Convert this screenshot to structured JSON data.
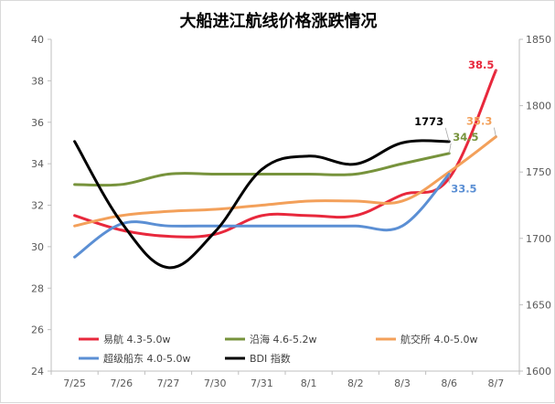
{
  "chart_data": {
    "type": "line",
    "title": "大船进江航线价格涨跌情况",
    "categories": [
      "7/25",
      "7/26",
      "7/27",
      "7/30",
      "7/31",
      "8/1",
      "8/2",
      "8/3",
      "8/6",
      "8/7"
    ],
    "y_left": {
      "min": 24,
      "max": 40,
      "step": 2
    },
    "y_right": {
      "min": 1600,
      "max": 1850,
      "step": 50
    },
    "grid": false,
    "legend_position": "bottom-left",
    "series": [
      {
        "name": "易航 4.3-5.0w",
        "axis": "left",
        "color": "#e8283c",
        "values": [
          31.5,
          30.8,
          30.5,
          30.6,
          31.5,
          31.5,
          31.5,
          32.5,
          33.3,
          38.5
        ],
        "data_label": {
          "index": 9,
          "text": "38.5"
        }
      },
      {
        "name": "沿海 4.6-5.2w",
        "axis": "left",
        "color": "#77933c",
        "values": [
          33.0,
          33.0,
          33.5,
          33.5,
          33.5,
          33.5,
          33.5,
          34.0,
          34.5,
          null
        ],
        "data_label": {
          "index": 8,
          "text": "34.5"
        }
      },
      {
        "name": "航交所 4.0-5.0w",
        "axis": "left",
        "color": "#f3a05a",
        "values": [
          31.0,
          31.5,
          31.7,
          31.8,
          32.0,
          32.2,
          32.2,
          32.2,
          33.6,
          35.3
        ],
        "data_label": {
          "index": 9,
          "text": "35.3"
        }
      },
      {
        "name": "超级船东 4.0-5.0w",
        "axis": "left",
        "color": "#5b8fd4",
        "values": [
          29.5,
          31.1,
          31.0,
          31.0,
          31.0,
          31.0,
          31.0,
          31.0,
          33.5,
          null
        ],
        "data_label": {
          "index": 8,
          "text": "33.5"
        }
      },
      {
        "name": "BDI 指数",
        "axis": "right",
        "color": "#000000",
        "values": [
          1773,
          1712,
          1678,
          1705,
          1752,
          1762,
          1756,
          1772,
          1773,
          null
        ],
        "data_label": {
          "index": 8,
          "text": "1773"
        }
      }
    ]
  }
}
